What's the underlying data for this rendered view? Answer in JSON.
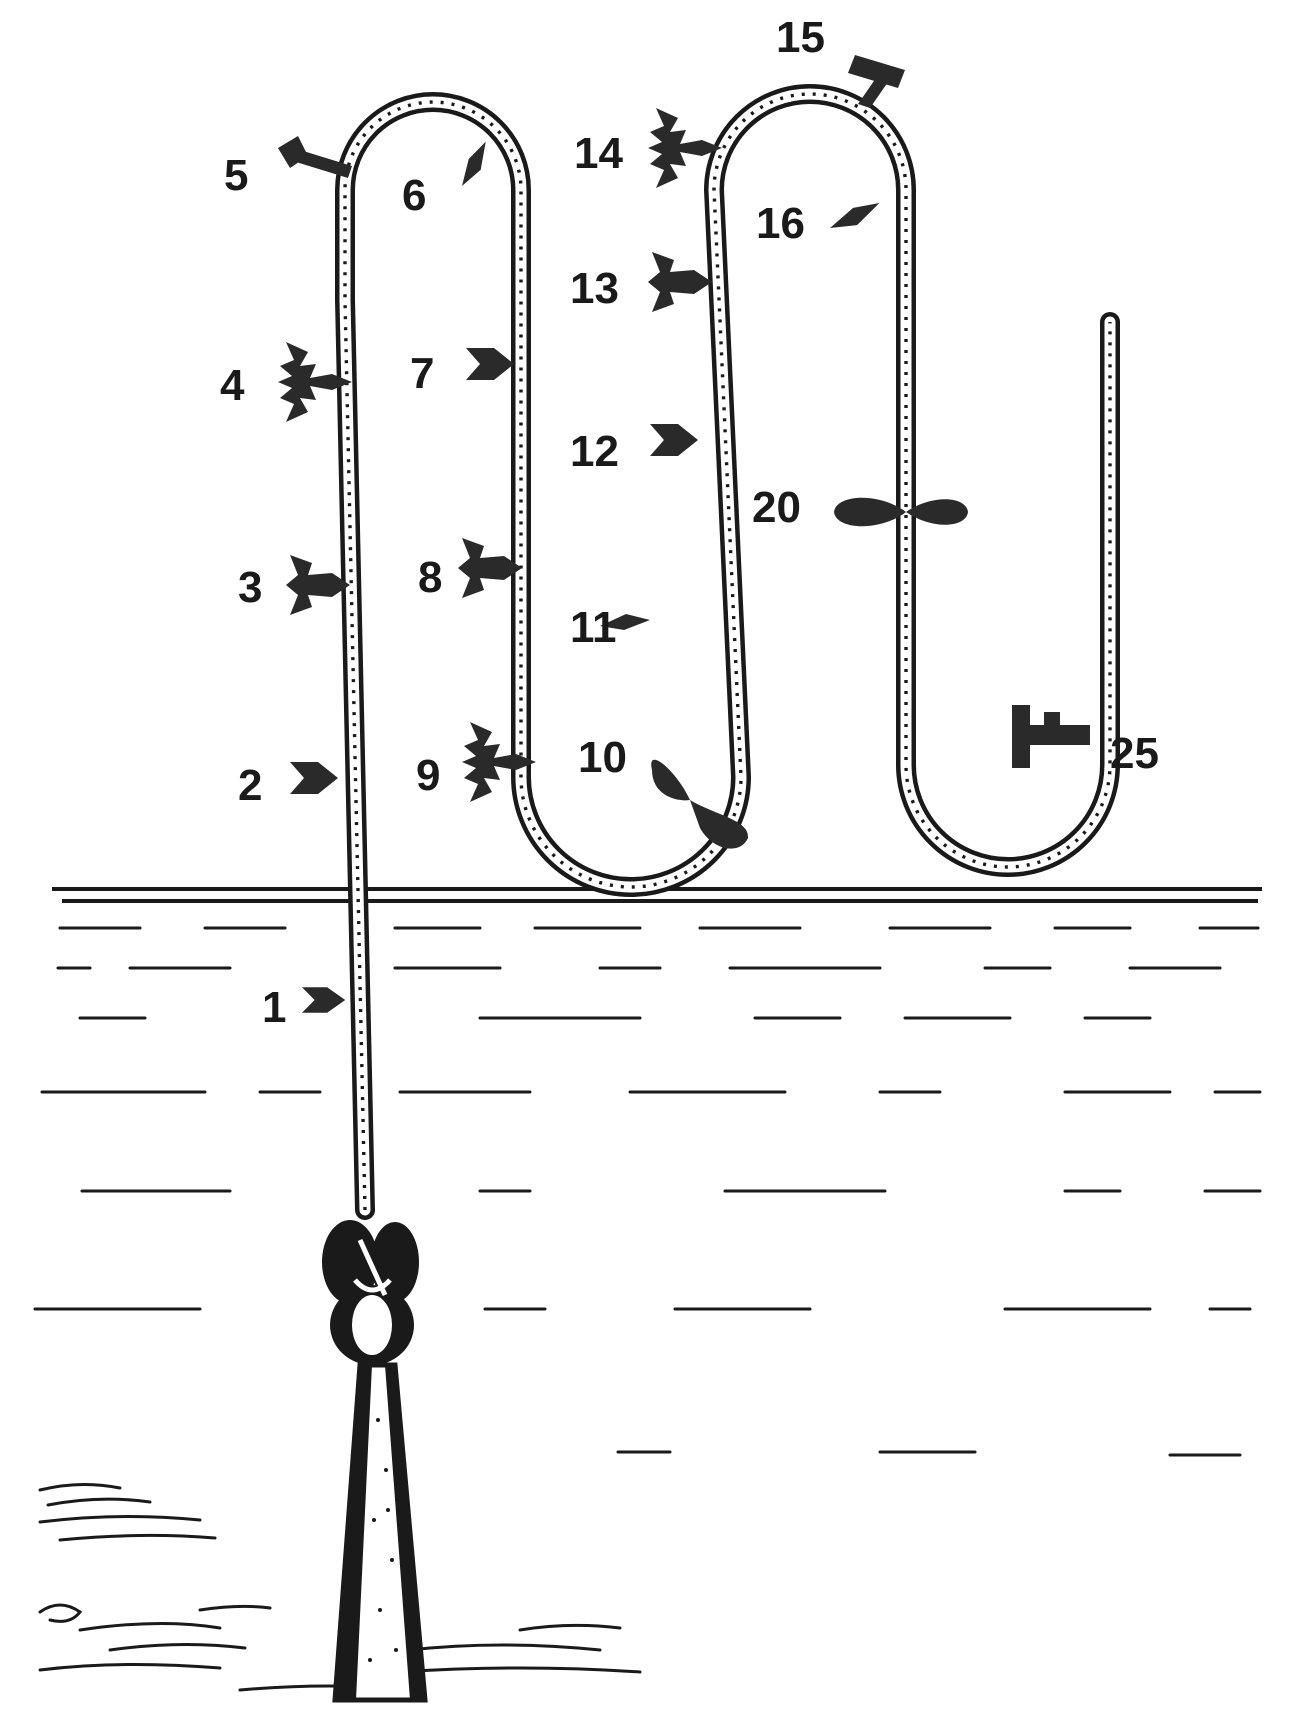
{
  "diagram": {
    "colors": {
      "ink": "#1a1a1a",
      "paper": "#ffffff"
    },
    "labels": [
      {
        "id": "1",
        "text": "1",
        "icon": "arrowhead-icon"
      },
      {
        "id": "2",
        "text": "2",
        "icon": "arrowhead-icon"
      },
      {
        "id": "3",
        "text": "3",
        "icon": "double-barb-hook-icon"
      },
      {
        "id": "4",
        "text": "4",
        "icon": "triple-barb-hook-icon"
      },
      {
        "id": "5",
        "text": "5",
        "icon": "hammer-tool-icon"
      },
      {
        "id": "6",
        "text": "6",
        "icon": "diamond-lure-icon"
      },
      {
        "id": "7",
        "text": "7",
        "icon": "arrowhead-icon"
      },
      {
        "id": "8",
        "text": "8",
        "icon": "double-barb-hook-icon"
      },
      {
        "id": "9",
        "text": "9",
        "icon": "triple-barb-hook-icon"
      },
      {
        "id": "10",
        "text": "10",
        "icon": "teardrop-float-icon"
      },
      {
        "id": "11",
        "text": "11",
        "icon": "diamond-lure-icon"
      },
      {
        "id": "12",
        "text": "12",
        "icon": "arrowhead-icon"
      },
      {
        "id": "13",
        "text": "13",
        "icon": "double-barb-hook-icon"
      },
      {
        "id": "14",
        "text": "14",
        "icon": "triple-barb-hook-icon"
      },
      {
        "id": "15",
        "text": "15",
        "icon": "hammer-tool-icon"
      },
      {
        "id": "16",
        "text": "16",
        "icon": "diamond-lure-icon"
      },
      {
        "id": "20",
        "text": "20",
        "icon": "teardrop-float-icon"
      },
      {
        "id": "25",
        "text": "25",
        "icon": "key-tool-icon"
      }
    ]
  }
}
